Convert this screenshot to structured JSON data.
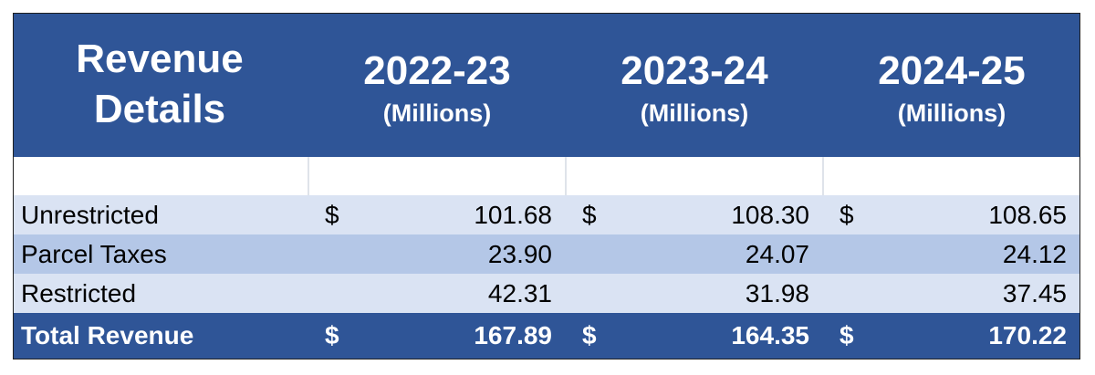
{
  "header": {
    "title_line1": "Revenue",
    "title_line2": "Details",
    "columns": [
      {
        "year": "2022-23",
        "unit": "(Millions)"
      },
      {
        "year": "2023-24",
        "unit": "(Millions)"
      },
      {
        "year": "2024-25",
        "unit": "(Millions)"
      }
    ]
  },
  "rows": [
    {
      "label": "Unrestricted",
      "cells": [
        {
          "currency": "$",
          "value": "101.68"
        },
        {
          "currency": "$",
          "value": "108.30"
        },
        {
          "currency": "$",
          "value": "108.65"
        }
      ]
    },
    {
      "label": "Parcel Taxes",
      "cells": [
        {
          "currency": "",
          "value": "23.90"
        },
        {
          "currency": "",
          "value": "24.07"
        },
        {
          "currency": "",
          "value": "24.12"
        }
      ]
    },
    {
      "label": "Restricted",
      "cells": [
        {
          "currency": "",
          "value": "42.31"
        },
        {
          "currency": "",
          "value": "31.98"
        },
        {
          "currency": "",
          "value": "37.45"
        }
      ]
    }
  ],
  "total": {
    "label": "Total Revenue",
    "cells": [
      {
        "currency": "$",
        "value": "167.89"
      },
      {
        "currency": "$",
        "value": "164.35"
      },
      {
        "currency": "$",
        "value": "170.22"
      }
    ]
  },
  "colors": {
    "header_bg": "#2f5597",
    "row_light": "#dae3f3",
    "row_mid": "#b4c7e7",
    "header_text": "#ffffff"
  }
}
